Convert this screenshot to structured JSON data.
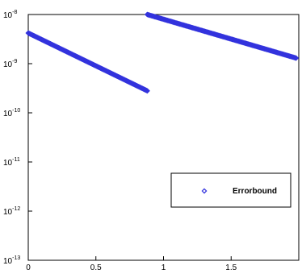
{
  "chart_data": {
    "type": "scatter",
    "title": "",
    "xlabel": "",
    "ylabel": "",
    "xlim": [
      0,
      2
    ],
    "ylim": [
      1e-13,
      1e-08
    ],
    "y_scale": "log",
    "grid": false,
    "legend_position": "bottom-right",
    "x_ticks": [
      {
        "value": 0,
        "label": "0"
      },
      {
        "value": 0.5,
        "label": "0.5"
      },
      {
        "value": 1,
        "label": "1"
      },
      {
        "value": 1.5,
        "label": "1.5"
      }
    ],
    "y_ticks": [
      {
        "value": 1e-13,
        "base": "10",
        "exp": "-13"
      },
      {
        "value": 1e-12,
        "base": "10",
        "exp": "-12"
      },
      {
        "value": 1e-11,
        "base": "10",
        "exp": "-11"
      },
      {
        "value": 1e-10,
        "base": "10",
        "exp": "-10"
      },
      {
        "value": 1e-09,
        "base": "10",
        "exp": "-9"
      },
      {
        "value": 1e-08,
        "base": "10",
        "exp": "-8"
      }
    ],
    "series": [
      {
        "name": "Errorbound",
        "color": "#3333dd",
        "marker": "diamond",
        "segments": [
          {
            "x_start": 0.0,
            "x_end": 0.88,
            "y_start": 4.2e-09,
            "y_end": 2.8e-10
          },
          {
            "x_start": 0.88,
            "x_end": 1.98,
            "y_start": 1e-08,
            "y_end": 1.3e-09
          }
        ]
      }
    ]
  }
}
